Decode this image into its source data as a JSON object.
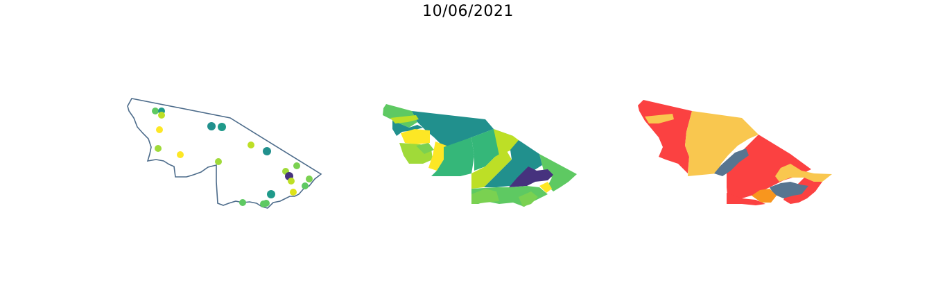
{
  "title": "10/06/2021",
  "colors": {
    "outline": "#4c6b8a",
    "viridis": [
      "#46327e",
      "#21908d",
      "#1f9a8a",
      "#35b779",
      "#5ec962",
      "#7ad151",
      "#a0da39",
      "#bddf26",
      "#dfe318",
      "#fde725"
    ],
    "risk": [
      "#fb4141",
      "#f9c74f",
      "#f8961e",
      "#577590"
    ]
  },
  "maps": [
    {
      "name": "point-map",
      "style": "outline-with-points"
    },
    {
      "name": "viridis-choropleth",
      "style": "filled-regions"
    },
    {
      "name": "risk-choropleth",
      "style": "filled-regions"
    }
  ]
}
